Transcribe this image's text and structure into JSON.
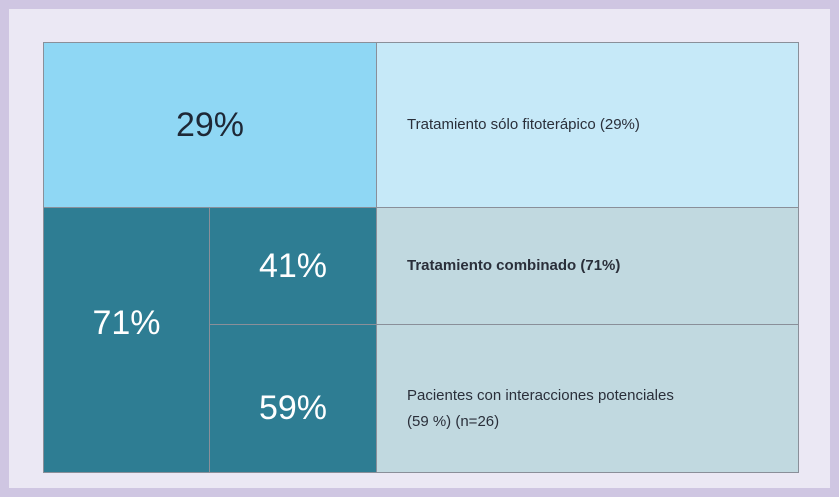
{
  "rows": [
    {
      "percent": "29%",
      "label": "Tratamiento sólo fitoterápico (29%)"
    },
    {
      "group_percent": "71%",
      "percent": "41%",
      "label": "Tratamiento combinado (71%)"
    },
    {
      "percent": "59%",
      "label_lines": [
        "Pacientes con interacciones potenciales",
        "(59 %) (n=26)"
      ]
    }
  ]
}
